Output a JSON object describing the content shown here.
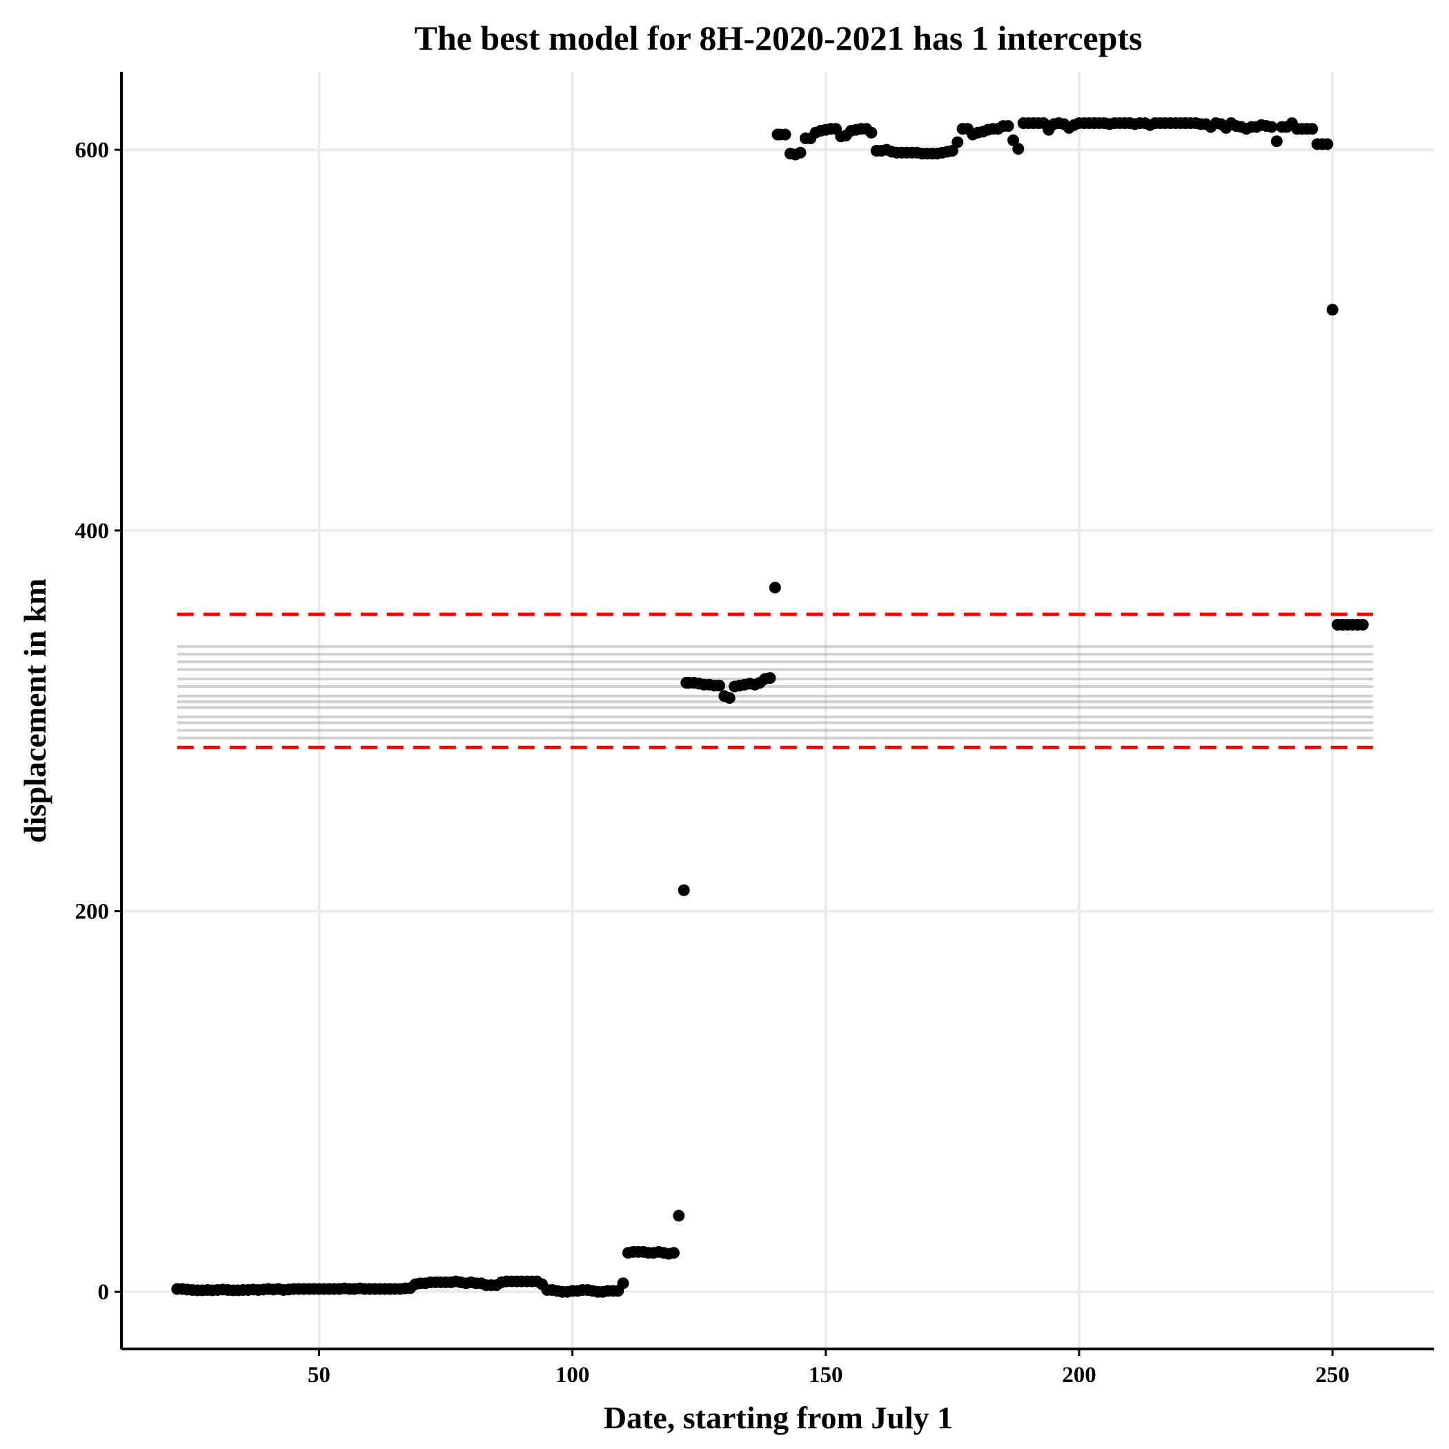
{
  "chart_data": {
    "type": "scatter",
    "title": "The best model for 8H-2020-2021 has 1 intercepts",
    "xlabel": "Date, starting from July 1",
    "ylabel": "displacement in km",
    "xlim": [
      11,
      270
    ],
    "ylim": [
      -30,
      641
    ],
    "x_ticks": [
      50,
      100,
      150,
      200,
      250
    ],
    "y_ticks": [
      0,
      200,
      400,
      600
    ],
    "grid": true,
    "legend": "none",
    "colors": {
      "points": "#000000",
      "interval": "#ff0000",
      "draws": "#999999",
      "grid": "#ebebeb",
      "axis": "#000000"
    },
    "reference_lines": {
      "x_range": [
        22,
        258
      ],
      "upper_bound": 356,
      "lower_bound": 286,
      "intercept_draws": [
        339,
        335,
        331,
        327,
        322,
        318,
        313,
        310,
        307,
        302,
        299,
        295,
        291
      ]
    },
    "series": [
      {
        "points": [
          [
            22,
            1.5
          ],
          [
            23,
            1.5
          ],
          [
            24,
            1.2
          ],
          [
            25,
            1
          ],
          [
            26,
            0.8
          ],
          [
            27,
            0.8
          ],
          [
            28,
            1
          ],
          [
            29,
            0.8
          ],
          [
            30,
            1
          ],
          [
            31,
            1.2
          ],
          [
            32,
            1
          ],
          [
            33,
            0.8
          ],
          [
            34,
            0.8
          ],
          [
            35,
            1
          ],
          [
            36,
            1
          ],
          [
            37,
            1.2
          ],
          [
            38,
            1
          ],
          [
            39,
            1.2
          ],
          [
            40,
            1.5
          ],
          [
            41,
            1.2
          ],
          [
            42,
            1.5
          ],
          [
            43,
            1
          ],
          [
            44,
            1.2
          ],
          [
            45,
            1.5
          ],
          [
            46,
            1.5
          ],
          [
            47,
            1.5
          ],
          [
            48,
            1.5
          ],
          [
            49,
            1.5
          ],
          [
            50,
            1.5
          ],
          [
            51,
            1.5
          ],
          [
            52,
            1.5
          ],
          [
            53,
            1.5
          ],
          [
            54,
            1.5
          ],
          [
            55,
            1.8
          ],
          [
            56,
            1.5
          ],
          [
            57,
            1.5
          ],
          [
            58,
            1.8
          ],
          [
            59,
            1.5
          ],
          [
            60,
            1.5
          ],
          [
            61,
            1.5
          ],
          [
            62,
            1.5
          ],
          [
            63,
            1.5
          ],
          [
            64,
            1.5
          ],
          [
            65,
            1.5
          ],
          [
            66,
            1.5
          ],
          [
            67,
            1.8
          ],
          [
            68,
            2
          ],
          [
            69,
            4
          ],
          [
            70,
            4.5
          ],
          [
            71,
            4.5
          ],
          [
            72,
            5
          ],
          [
            73,
            5
          ],
          [
            74,
            5
          ],
          [
            75,
            5
          ],
          [
            76,
            5
          ],
          [
            77,
            5.5
          ],
          [
            78,
            5
          ],
          [
            79,
            4.5
          ],
          [
            80,
            5
          ],
          [
            81,
            4.5
          ],
          [
            82,
            4.5
          ],
          [
            83,
            3.5
          ],
          [
            84,
            3.5
          ],
          [
            85,
            3.5
          ],
          [
            86,
            5
          ],
          [
            87,
            5.5
          ],
          [
            88,
            5.5
          ],
          [
            89,
            5.5
          ],
          [
            90,
            5.5
          ],
          [
            91,
            5.5
          ],
          [
            92,
            5.5
          ],
          [
            93,
            5.5
          ],
          [
            94,
            4
          ],
          [
            95,
            1
          ],
          [
            96,
            1
          ],
          [
            97,
            0.5
          ],
          [
            98,
            0
          ],
          [
            99,
            0
          ],
          [
            100,
            0.5
          ],
          [
            101,
            0.5
          ],
          [
            102,
            1
          ],
          [
            103,
            1
          ],
          [
            104,
            0.5
          ],
          [
            105,
            0
          ],
          [
            106,
            0
          ],
          [
            107,
            0.5
          ],
          [
            108,
            0.5
          ],
          [
            109,
            0.5
          ],
          [
            110,
            4.5
          ],
          [
            111,
            20.5
          ],
          [
            112,
            21
          ],
          [
            113,
            21
          ],
          [
            114,
            21
          ],
          [
            115,
            20.5
          ],
          [
            116,
            20.5
          ],
          [
            117,
            21
          ],
          [
            118,
            20.5
          ],
          [
            119,
            20
          ],
          [
            120,
            20.5
          ],
          [
            121,
            40
          ],
          [
            122,
            211
          ],
          [
            122.5,
            320
          ],
          [
            123,
            320
          ],
          [
            124,
            320
          ],
          [
            125,
            319.5
          ],
          [
            126,
            319
          ],
          [
            127,
            319
          ],
          [
            128,
            318.5
          ],
          [
            129,
            318.5
          ],
          [
            130,
            313
          ],
          [
            131,
            312
          ],
          [
            132,
            318
          ],
          [
            133,
            318.5
          ],
          [
            134,
            319
          ],
          [
            135,
            319.5
          ],
          [
            136,
            319
          ],
          [
            137,
            320
          ],
          [
            138,
            322
          ],
          [
            139,
            322.5
          ],
          [
            140,
            370
          ],
          [
            140.5,
            608
          ],
          [
            141,
            608
          ],
          [
            142,
            608
          ],
          [
            143,
            598
          ],
          [
            144,
            597.5
          ],
          [
            145,
            598.5
          ],
          [
            146,
            606
          ],
          [
            147,
            606
          ],
          [
            148,
            609
          ],
          [
            149,
            610
          ],
          [
            150,
            610.5
          ],
          [
            151,
            611
          ],
          [
            152,
            611
          ],
          [
            153,
            607
          ],
          [
            154,
            607.5
          ],
          [
            155,
            610
          ],
          [
            156,
            610.5
          ],
          [
            157,
            611
          ],
          [
            158,
            611
          ],
          [
            159,
            609
          ],
          [
            160,
            599.5
          ],
          [
            161,
            599.5
          ],
          [
            162,
            600
          ],
          [
            163,
            599
          ],
          [
            164,
            598.5
          ],
          [
            165,
            598.5
          ],
          [
            166,
            598.5
          ],
          [
            167,
            598.5
          ],
          [
            168,
            598.5
          ],
          [
            169,
            598
          ],
          [
            170,
            598
          ],
          [
            171,
            598
          ],
          [
            172,
            598
          ],
          [
            173,
            598.5
          ],
          [
            174,
            599
          ],
          [
            175,
            599.5
          ],
          [
            176,
            604
          ],
          [
            177,
            611
          ],
          [
            178,
            611
          ],
          [
            179,
            608
          ],
          [
            180,
            609
          ],
          [
            181,
            609.5
          ],
          [
            182,
            610.5
          ],
          [
            183,
            611
          ],
          [
            184,
            611
          ],
          [
            185,
            612.5
          ],
          [
            186,
            612.5
          ],
          [
            187,
            605
          ],
          [
            188,
            600.5
          ],
          [
            189,
            614
          ],
          [
            190,
            614
          ],
          [
            191,
            614
          ],
          [
            192,
            614
          ],
          [
            193,
            614
          ],
          [
            194,
            610.5
          ],
          [
            195,
            613.5
          ],
          [
            196,
            614
          ],
          [
            197,
            613.5
          ],
          [
            198,
            611.5
          ],
          [
            199,
            613
          ],
          [
            200,
            614
          ],
          [
            201,
            614
          ],
          [
            202,
            614
          ],
          [
            203,
            614
          ],
          [
            204,
            614
          ],
          [
            205,
            614
          ],
          [
            206,
            613.5
          ],
          [
            207,
            614
          ],
          [
            208,
            614
          ],
          [
            209,
            614
          ],
          [
            210,
            614
          ],
          [
            211,
            613.5
          ],
          [
            212,
            614
          ],
          [
            213,
            614
          ],
          [
            214,
            613
          ],
          [
            215,
            614
          ],
          [
            216,
            614
          ],
          [
            217,
            614
          ],
          [
            218,
            614
          ],
          [
            219,
            614
          ],
          [
            220,
            614
          ],
          [
            221,
            614
          ],
          [
            222,
            614
          ],
          [
            223,
            614
          ],
          [
            224,
            613.5
          ],
          [
            225,
            613.5
          ],
          [
            226,
            612
          ],
          [
            227,
            614
          ],
          [
            228,
            613.5
          ],
          [
            229,
            611.5
          ],
          [
            230,
            614
          ],
          [
            231,
            612.5
          ],
          [
            232,
            612
          ],
          [
            233,
            611
          ],
          [
            234,
            612
          ],
          [
            235,
            612
          ],
          [
            236,
            613
          ],
          [
            237,
            612.5
          ],
          [
            238,
            612
          ],
          [
            239,
            604.5
          ],
          [
            240,
            612
          ],
          [
            241,
            612
          ],
          [
            242,
            614
          ],
          [
            243,
            611
          ],
          [
            244,
            611
          ],
          [
            245,
            611
          ],
          [
            246,
            611
          ],
          [
            247,
            603
          ],
          [
            248,
            603
          ],
          [
            249,
            603
          ],
          [
            250,
            516
          ],
          [
            251,
            350.5
          ],
          [
            252,
            350.5
          ],
          [
            253,
            350.5
          ],
          [
            254,
            350.5
          ],
          [
            255,
            350.5
          ],
          [
            256,
            350.5
          ]
        ]
      }
    ]
  }
}
